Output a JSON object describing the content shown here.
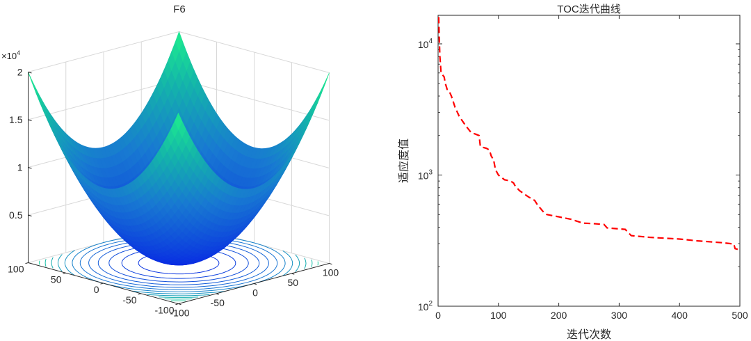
{
  "chart_data": [
    {
      "type": "surface3d",
      "title": "F6",
      "z_exponent_label": "×10",
      "z_exponent_power": "4",
      "z_ticks": [
        "2",
        "1.5",
        "1",
        "0.5"
      ],
      "x_ticks": [
        "100",
        "50",
        "0",
        "-50",
        "-100"
      ],
      "y_ticks": [
        "-100",
        "-50",
        "0",
        "50",
        "100"
      ],
      "x_range": [
        -100,
        100
      ],
      "y_range": [
        -100,
        100
      ],
      "z_range": [
        0,
        20000
      ],
      "contour_levels": 14,
      "colors": {
        "low": "#0a2fe0",
        "mid": "#1a8fd0",
        "high": "#1ef08a",
        "edge": "#000000"
      }
    },
    {
      "type": "line",
      "title": "TOC迭代曲线",
      "xlabel": "迭代次数",
      "ylabel": "适应度值",
      "x_ticks": [
        "0",
        "100",
        "200",
        "300",
        "400",
        "500"
      ],
      "y_ticks": [
        "10",
        "10",
        "10"
      ],
      "y_tick_powers": [
        "4",
        "3",
        "2"
      ],
      "xlim": [
        0,
        500
      ],
      "ylim": [
        100,
        16500
      ],
      "yscale": "log",
      "grid": false,
      "series": [
        {
          "color": "#ff0000",
          "style": "dashed",
          "points": [
            [
              1,
              16000
            ],
            [
              2,
              11000
            ],
            [
              3,
              8000
            ],
            [
              5,
              6000
            ],
            [
              10,
              5600
            ],
            [
              12,
              5000
            ],
            [
              15,
              4500
            ],
            [
              18,
              4400
            ],
            [
              22,
              4000
            ],
            [
              28,
              3300
            ],
            [
              35,
              2800
            ],
            [
              45,
              2400
            ],
            [
              55,
              2100
            ],
            [
              62,
              2050
            ],
            [
              68,
              2000
            ],
            [
              70,
              1650
            ],
            [
              75,
              1620
            ],
            [
              80,
              1600
            ],
            [
              85,
              1550
            ],
            [
              88,
              1400
            ],
            [
              92,
              1300
            ],
            [
              95,
              1100
            ],
            [
              100,
              1000
            ],
            [
              110,
              920
            ],
            [
              120,
              900
            ],
            [
              125,
              870
            ],
            [
              128,
              820
            ],
            [
              135,
              760
            ],
            [
              150,
              680
            ],
            [
              160,
              640
            ],
            [
              165,
              590
            ],
            [
              175,
              520
            ],
            [
              180,
              500
            ],
            [
              200,
              480
            ],
            [
              220,
              460
            ],
            [
              240,
              430
            ],
            [
              260,
              425
            ],
            [
              275,
              420
            ],
            [
              280,
              395
            ],
            [
              310,
              385
            ],
            [
              315,
              365
            ],
            [
              320,
              345
            ],
            [
              350,
              335
            ],
            [
              400,
              325
            ],
            [
              430,
              315
            ],
            [
              470,
              305
            ],
            [
              490,
              298
            ],
            [
              492,
              275
            ],
            [
              500,
              268
            ]
          ]
        }
      ]
    }
  ]
}
